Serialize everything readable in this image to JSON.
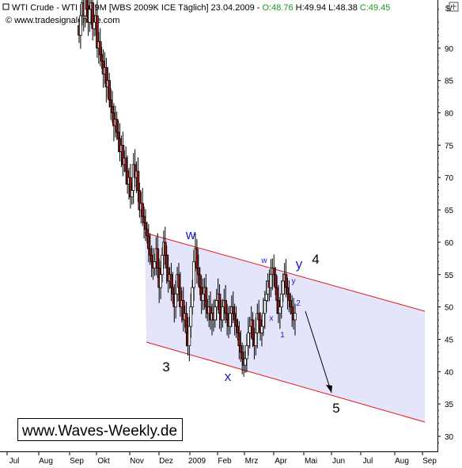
{
  "header": {
    "title": "WTI Crude - WTI 2009M [WBS 2009K ICE  Täglich] 23.04.2009 - ",
    "open": "O:48.76",
    "high": "H:49.94",
    "low": "L:48.38",
    "close": "C:49.45",
    "source": "www.tradesignalonline.com"
  },
  "brand": "www.Waves-Weekly.de",
  "colors": {
    "candle_up": "#ffffff",
    "candle_down": "#8b1a1a",
    "wick": "#000000",
    "channel_line": "#e01818",
    "channel_fill": "#e4e4fa",
    "wave_blue": "#1a1acc",
    "wave_black": "#000000",
    "close_green": "#1a9a1a"
  },
  "chart_data": {
    "type": "candlestick",
    "y_unit": "$/",
    "ylim": [
      28,
      97
    ],
    "yticks": [
      30,
      35,
      40,
      45,
      50,
      55,
      60,
      65,
      70,
      75,
      80,
      85,
      90
    ],
    "x_labels": [
      "Jul",
      "Aug",
      "Sep",
      "Okt",
      "Nov",
      "Dez",
      "2009",
      "Feb",
      "Mrz",
      "Apr",
      "Mai",
      "Jun",
      "Jul",
      "Aug",
      "Sep"
    ],
    "closes": [
      92,
      95,
      97,
      95,
      98,
      96,
      94,
      96,
      97,
      93,
      94,
      95,
      90,
      91,
      89,
      88,
      86,
      87,
      84,
      85,
      82,
      81,
      80,
      78,
      79,
      77,
      76,
      74,
      75,
      72,
      73,
      71,
      69,
      70,
      67,
      68,
      72,
      70,
      71,
      68,
      65,
      66,
      64,
      63,
      62,
      61,
      59,
      58,
      57,
      56,
      57,
      59,
      56,
      53,
      55,
      58,
      60,
      58,
      56,
      54,
      55,
      53,
      52,
      50,
      52,
      55,
      53,
      50,
      51,
      48,
      49,
      46,
      44,
      47,
      50,
      53,
      57,
      59,
      56,
      55,
      53,
      51,
      52,
      53,
      50,
      49,
      50,
      48,
      49,
      48,
      50,
      51,
      52,
      49,
      48,
      50,
      51,
      49,
      48,
      47,
      49,
      50,
      49,
      48,
      47,
      46,
      44,
      43,
      42,
      41,
      42,
      44,
      46,
      47,
      48,
      45,
      44,
      46,
      49,
      48,
      46,
      47,
      49,
      51,
      52,
      54,
      53,
      55,
      56,
      55,
      53,
      51,
      49,
      50,
      52,
      54,
      55,
      53,
      52,
      51,
      50,
      49,
      48,
      49
    ],
    "waves": [
      {
        "label": "w",
        "size": "big",
        "color": "blue",
        "x": "Dez-13",
        "y": 59.3
      },
      {
        "label": "3",
        "size": "big",
        "color": "black",
        "x": "Dez",
        "y": 42
      },
      {
        "label": "x",
        "size": "big",
        "color": "blue",
        "x": "Feb",
        "y": 40
      },
      {
        "label": "w",
        "size": "small",
        "color": "blue",
        "x": "Mrz",
        "y": 57
      },
      {
        "label": "y",
        "size": "big",
        "color": "blue",
        "x": "Apr",
        "y": 56
      },
      {
        "label": "4",
        "size": "big",
        "color": "black",
        "x": "Apr",
        "y": 57
      },
      {
        "label": "y",
        "size": "small",
        "color": "blue",
        "x": "Apr",
        "y": 54
      },
      {
        "label": "x",
        "size": "small",
        "color": "blue",
        "x": "Apr",
        "y": 48.4
      },
      {
        "label": "2",
        "size": "small",
        "color": "blue",
        "x": "Apr",
        "y": 51.2
      },
      {
        "label": "1",
        "size": "small",
        "color": "blue",
        "x": "Apr",
        "y": 45.6
      },
      {
        "label": "5",
        "size": "big",
        "color": "black",
        "x": "Jun",
        "y": 34
      }
    ]
  }
}
